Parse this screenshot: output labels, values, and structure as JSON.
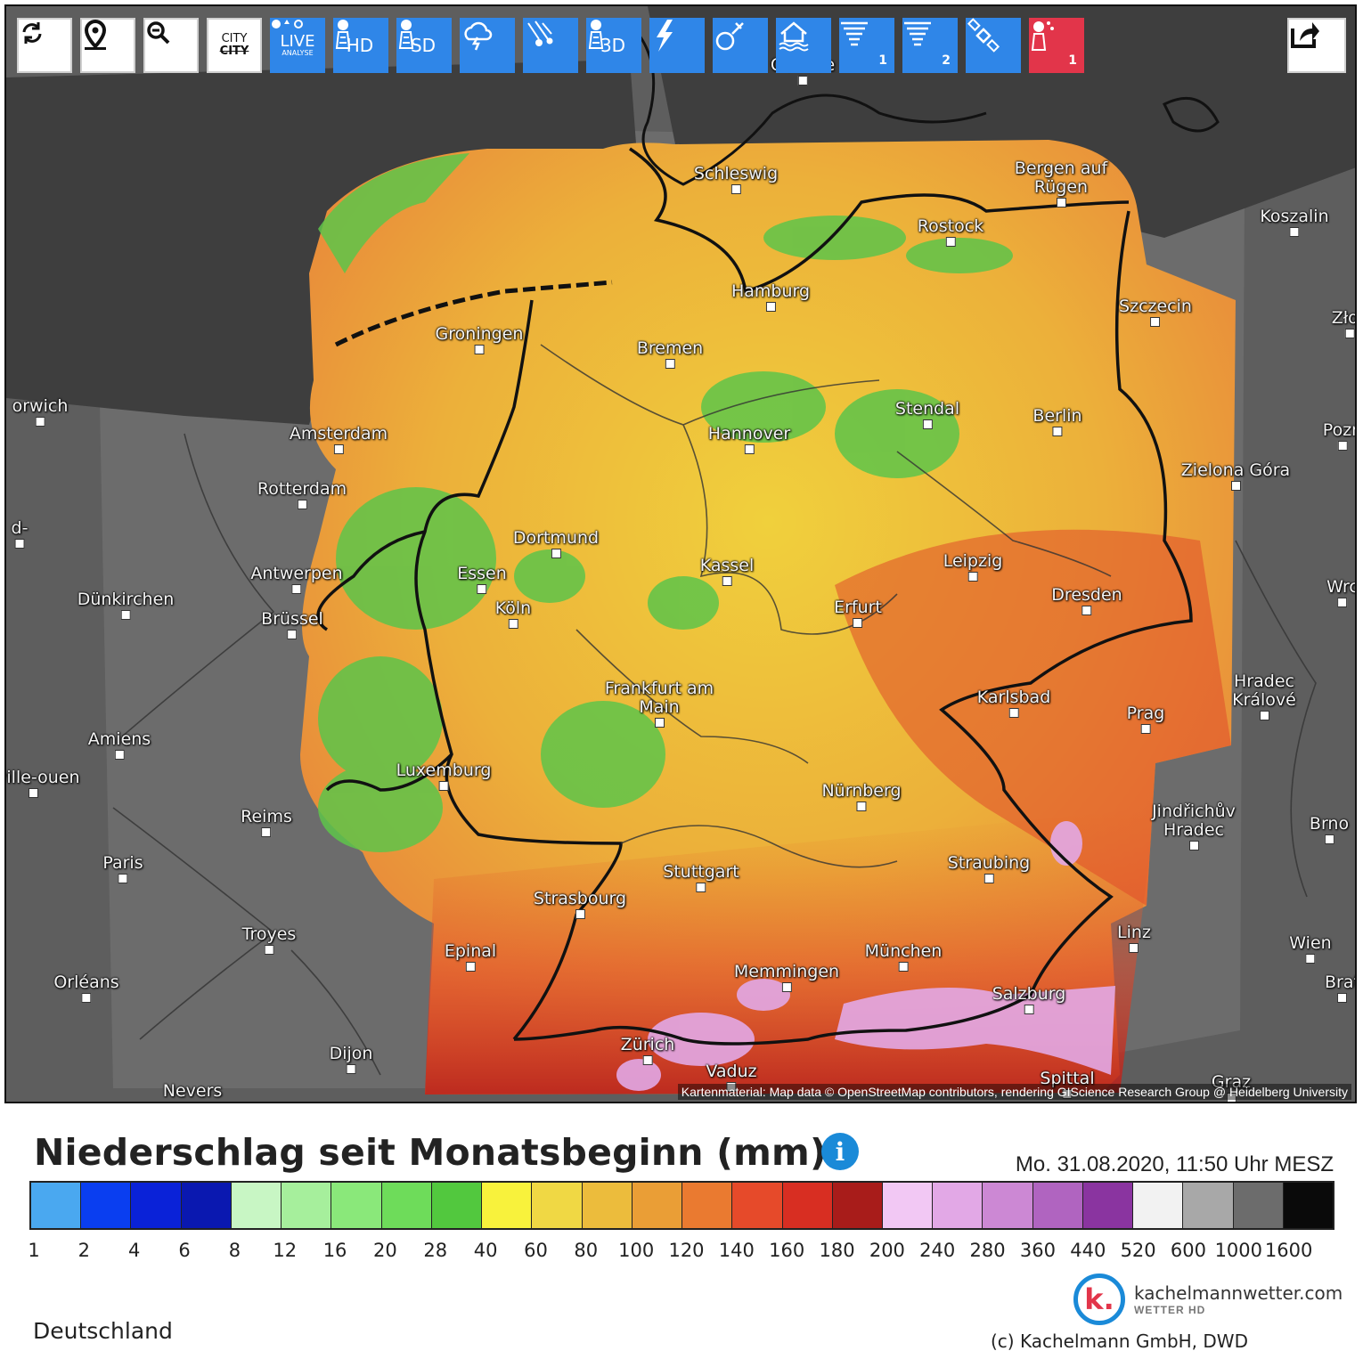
{
  "toolbar": {
    "buttons": [
      {
        "name": "refresh-button",
        "icon": "refresh-icon",
        "label": "",
        "style": "white"
      },
      {
        "name": "location-button",
        "icon": "map-pin-icon",
        "label": "",
        "style": "white"
      },
      {
        "name": "zoom-out-button",
        "icon": "zoom-out-icon",
        "label": "",
        "style": "white"
      },
      {
        "name": "city-toggle-button",
        "icon": "city-labels-icon",
        "label": "CITY",
        "style": "white"
      },
      {
        "name": "live-analysis-button",
        "icon": "live-weather-icon",
        "label": "LIVE",
        "sublabel": "ANALYSE",
        "style": "blue"
      },
      {
        "name": "radar-hd-button",
        "icon": "radar-tower-icon",
        "label": "HD",
        "style": "blue"
      },
      {
        "name": "radar-sd-button",
        "icon": "radar-tower-icon",
        "label": "SD",
        "style": "blue"
      },
      {
        "name": "storm-button",
        "icon": "thunder-cloud-icon",
        "label": "",
        "style": "blue"
      },
      {
        "name": "hail-tracks-button",
        "icon": "hail-tracks-icon",
        "label": "",
        "style": "blue"
      },
      {
        "name": "radar-3d-button",
        "icon": "radar-tower-icon",
        "label": "3D",
        "style": "blue"
      },
      {
        "name": "lightning-button",
        "icon": "lightning-icon",
        "label": "",
        "style": "blue"
      },
      {
        "name": "satellite-button",
        "icon": "satellite-orbit-icon",
        "label": "",
        "style": "blue"
      },
      {
        "name": "flood-button",
        "icon": "flood-house-icon",
        "label": "",
        "style": "blue"
      },
      {
        "name": "tornado-1-button",
        "icon": "tornado-icon",
        "label": "1",
        "style": "blue"
      },
      {
        "name": "tornado-2-button",
        "icon": "tornado-icon",
        "label": "2",
        "style": "blue"
      },
      {
        "name": "sat-imagery-button",
        "icon": "satellite-icon",
        "label": "",
        "style": "blue"
      },
      {
        "name": "precip-radar-button",
        "icon": "rain-radar-icon",
        "label": "1",
        "style": "red"
      }
    ],
    "share_icon": "share-icon"
  },
  "map": {
    "attribution": "Kartenmaterial: Map data © OpenStreetMap contributors, rendering GIScience Research Group @ Heidelberg University",
    "cities": [
      {
        "name": "Odense"
      },
      {
        "name": "Schleswig"
      },
      {
        "name": "Bergen auf Rügen"
      },
      {
        "name": "Koszalin"
      },
      {
        "name": "Rostock"
      },
      {
        "name": "Hamburg"
      },
      {
        "name": "Szczecin"
      },
      {
        "name": "Złoc"
      },
      {
        "name": "Groningen"
      },
      {
        "name": "Bremen"
      },
      {
        "name": "orwich"
      },
      {
        "name": "Stendal"
      },
      {
        "name": "Berlin"
      },
      {
        "name": "Amsterdam"
      },
      {
        "name": "Hannover"
      },
      {
        "name": "Pozn"
      },
      {
        "name": "Zielona Góra"
      },
      {
        "name": "Rotterdam"
      },
      {
        "name": "d-"
      },
      {
        "name": "Dortmund"
      },
      {
        "name": "Antwerpen"
      },
      {
        "name": "Essen"
      },
      {
        "name": "Kassel"
      },
      {
        "name": "Leipzig"
      },
      {
        "name": "Dünkirchen"
      },
      {
        "name": "Köln"
      },
      {
        "name": "Erfurt"
      },
      {
        "name": "Dresden"
      },
      {
        "name": "Wrc"
      },
      {
        "name": "Brüssel"
      },
      {
        "name": "Hradec Králové"
      },
      {
        "name": "Frankfurt am Main"
      },
      {
        "name": "Karlsbad"
      },
      {
        "name": "Prag"
      },
      {
        "name": "Amiens"
      },
      {
        "name": "Luxemburg"
      },
      {
        "name": "eville-ouen"
      },
      {
        "name": "Nürnberg"
      },
      {
        "name": "Jindřichův Hradec"
      },
      {
        "name": "Brno"
      },
      {
        "name": "Reims"
      },
      {
        "name": "Paris"
      },
      {
        "name": "Straubing"
      },
      {
        "name": "Stuttgart"
      },
      {
        "name": "Strasbourg"
      },
      {
        "name": "Troyes"
      },
      {
        "name": "Linz"
      },
      {
        "name": "Wien"
      },
      {
        "name": "Epinal"
      },
      {
        "name": "München"
      },
      {
        "name": "Memmingen"
      },
      {
        "name": "Orléans"
      },
      {
        "name": "Brat"
      },
      {
        "name": "Salzburg"
      },
      {
        "name": "Dijon"
      },
      {
        "name": "Zürich"
      },
      {
        "name": "Vaduz"
      },
      {
        "name": "Spittal"
      },
      {
        "name": "Graz"
      },
      {
        "name": "Nevers"
      }
    ]
  },
  "legend": {
    "title": "Niederschlag seit Monatsbeginn (mm)",
    "info_icon": "info-icon",
    "timestamp": "Mo. 31.08.2020, 11:50 Uhr MESZ",
    "colors": [
      "#4aa8f0",
      "#0a3ef0",
      "#0a22d8",
      "#0a18b0",
      "#c8f6c4",
      "#a6ef9c",
      "#8ae87a",
      "#6edc5a",
      "#52c83e",
      "#f8f23c",
      "#f0d844",
      "#ecbc3c",
      "#ea9e36",
      "#ea7a30",
      "#e64a2a",
      "#d82e22",
      "#a81c1a",
      "#f2c8f4",
      "#e2a8e6",
      "#cc88d4",
      "#b064c0",
      "#8a34a0",
      "#f2f2f2",
      "#a8a8a8",
      "#6c6c6c",
      "#0a0a0a"
    ],
    "ticks": [
      "1",
      "2",
      "4",
      "6",
      "8",
      "12",
      "16",
      "20",
      "28",
      "40",
      "60",
      "80",
      "100",
      "120",
      "140",
      "160",
      "180",
      "200",
      "240",
      "280",
      "360",
      "440",
      "520",
      "600",
      "1000",
      "1600"
    ],
    "region": "Deutschland"
  },
  "branding": {
    "logo_mark": "k.",
    "logo_name": "kachelmannwetter.com",
    "logo_sub": "WETTER HD",
    "copyright": "(c) Kachelmann GmbH, DWD"
  }
}
